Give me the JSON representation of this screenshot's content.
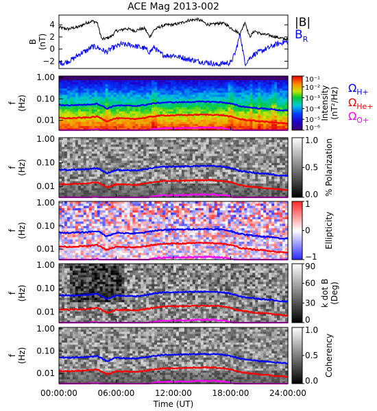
{
  "chart_data": [
    {
      "type": "line",
      "title": "ACE Mag 2013-002",
      "ylabel": "B",
      "yunit": "(nT)",
      "ylim": [
        -3.2,
        5.6
      ],
      "yticks": [
        "4",
        "2",
        "0",
        "−2"
      ],
      "ytick_values": [
        4,
        2,
        0,
        -2
      ],
      "x_hours": [
        0,
        0.5,
        1,
        1.5,
        2,
        2.5,
        3,
        3.5,
        4,
        4.5,
        5,
        5.5,
        6,
        6.5,
        7,
        7.5,
        8,
        8.5,
        9,
        9.5,
        10,
        10.5,
        11,
        11.5,
        12,
        12.5,
        13,
        13.5,
        14,
        14.5,
        15,
        15.5,
        16,
        16.5,
        17,
        17.5,
        18,
        18.5,
        19,
        19.5,
        20,
        20.5,
        21,
        21.5,
        22,
        22.5,
        23,
        23.5,
        24
      ],
      "series": [
        {
          "name": "|B|",
          "color": "#000000",
          "values": [
            3.6,
            3.4,
            3.3,
            3.5,
            3.6,
            4.0,
            4.4,
            4.6,
            4.4,
            1.6,
            1.8,
            2.1,
            3.0,
            3.1,
            3.4,
            3.2,
            3.0,
            3.3,
            3.4,
            2.0,
            3.2,
            3.6,
            3.9,
            4.0,
            4.0,
            4.2,
            4.4,
            4.7,
            4.8,
            4.9,
            4.6,
            4.1,
            4.0,
            4.2,
            4.3,
            4.1,
            3.5,
            3.0,
            2.5,
            4.5,
            2.0,
            3.0,
            2.6,
            2.4,
            2.3,
            2.1,
            1.9,
            1.7,
            1.6
          ]
        },
        {
          "name": "B",
          "name_sub": "R",
          "color": "#0000ff",
          "values": [
            -2.2,
            -2.3,
            -2.0,
            -1.6,
            -1.0,
            -0.5,
            -0.2,
            0.4,
            0.3,
            -0.1,
            -0.5,
            0.1,
            0.4,
            0.8,
            0.7,
            0.7,
            0.5,
            0.3,
            0.1,
            -0.5,
            0.3,
            -0.6,
            -1.0,
            -1.1,
            -1.0,
            -1.3,
            -1.4,
            -1.7,
            -1.8,
            -2.0,
            -2.1,
            -2.2,
            -2.3,
            -2.6,
            -2.4,
            -2.3,
            -2.3,
            -0.5,
            2.5,
            -2.4,
            -1.5,
            -0.8,
            -0.5,
            -0.1,
            0.2,
            0.6,
            0.9,
            1.1,
            1.2
          ]
        }
      ]
    },
    {
      "type": "heatmap",
      "ylabel": "f",
      "yunit": "(Hz)",
      "yscale": "log",
      "ylim": [
        0.0035,
        1.15
      ],
      "yticks": [
        "1.00",
        "0.10",
        "0.01"
      ],
      "ytick_values": [
        1,
        0.1,
        0.01
      ],
      "colorbar": {
        "label": "Intensity",
        "unit": "(nT²/Hz)",
        "scale": "log",
        "range": [
          1e-06,
          0.1
        ],
        "ticks": [
          "10⁻¹",
          "10⁻²",
          "10⁻³",
          "10⁻⁴",
          "10⁻⁵",
          "10⁻⁶"
        ],
        "tick_values": [
          0.1,
          0.01,
          0.001,
          0.0001,
          1e-05,
          1e-06
        ],
        "colormap": "rainbow"
      }
    },
    {
      "type": "heatmap",
      "ylabel": "f",
      "yunit": "(Hz)",
      "yscale": "log",
      "ylim": [
        0.0035,
        1.15
      ],
      "yticks": [
        "1.00",
        "0.10",
        "0.01"
      ],
      "ytick_values": [
        1,
        0.1,
        0.01
      ],
      "colorbar": {
        "label": "% Polarization",
        "range": [
          0,
          1
        ],
        "ticks": [
          "1.0",
          "0.5",
          "0.0"
        ],
        "tick_values": [
          1,
          0.5,
          0
        ],
        "colormap": "grayscale"
      }
    },
    {
      "type": "heatmap",
      "ylabel": "f",
      "yunit": "(Hz)",
      "yscale": "log",
      "ylim": [
        0.0035,
        1.15
      ],
      "yticks": [
        "1.00",
        "0.10",
        "0.01"
      ],
      "ytick_values": [
        1,
        0.1,
        0.01
      ],
      "colorbar": {
        "label": "Ellipticity",
        "range": [
          -1,
          1
        ],
        "ticks": [
          "1",
          "0",
          "−1"
        ],
        "tick_values": [
          1,
          0,
          -1
        ],
        "colormap": "blue-white-red"
      }
    },
    {
      "type": "heatmap",
      "ylabel": "f",
      "yunit": "(Hz)",
      "yscale": "log",
      "ylim": [
        0.0035,
        1.15
      ],
      "yticks": [
        "1.00",
        "0.10",
        "0.01"
      ],
      "ytick_values": [
        1,
        0.1,
        0.01
      ],
      "colorbar": {
        "label": "k dot B",
        "unit": "(Deg)",
        "range": [
          0,
          90
        ],
        "ticks": [
          "90",
          "60",
          "30",
          "0"
        ],
        "tick_values": [
          90,
          60,
          30,
          0
        ],
        "colormap": "grayscale"
      }
    },
    {
      "type": "heatmap",
      "ylabel": "f",
      "yunit": "(Hz)",
      "yscale": "log",
      "ylim": [
        0.0035,
        1.15
      ],
      "yticks": [
        "1.00",
        "0.10",
        "0.01"
      ],
      "ytick_values": [
        1,
        0.1,
        0.01
      ],
      "xticks": [
        "00:00:00",
        "06:00:00",
        "12:00:00",
        "18:00:00",
        "24:00:00"
      ],
      "xtick_hours": [
        0,
        6,
        12,
        18,
        24
      ],
      "xlabel": "Time (UT)",
      "colorbar": {
        "label": "Coherency",
        "range": [
          0,
          1
        ],
        "ticks": [
          "1.0",
          "0.5",
          "0.0"
        ],
        "tick_values": [
          1,
          0.5,
          0
        ],
        "colormap": "grayscale"
      }
    }
  ],
  "gyrofrequency_lines": {
    "x_hours": [
      0,
      1,
      2,
      3,
      4,
      5,
      6,
      7,
      8,
      9,
      10,
      11,
      12,
      13,
      14,
      15,
      16,
      17,
      18,
      19,
      20,
      21,
      22,
      23,
      24
    ],
    "lines": [
      {
        "name": "Ω",
        "name_sub": "H+",
        "color": "#0000ff",
        "values": [
          0.052,
          0.05,
          0.052,
          0.054,
          0.06,
          0.035,
          0.05,
          0.048,
          0.047,
          0.052,
          0.062,
          0.068,
          0.069,
          0.07,
          0.072,
          0.074,
          0.073,
          0.07,
          0.06,
          0.045,
          0.04,
          0.036,
          0.034,
          0.03,
          0.028
        ]
      },
      {
        "name": "Ω",
        "name_sub": "He+",
        "color": "#ff0000",
        "values": [
          0.013,
          0.0125,
          0.013,
          0.0135,
          0.015,
          0.009,
          0.0125,
          0.012,
          0.0118,
          0.013,
          0.0155,
          0.017,
          0.0172,
          0.0175,
          0.018,
          0.0185,
          0.0183,
          0.0175,
          0.015,
          0.0112,
          0.01,
          0.009,
          0.0085,
          0.0075,
          0.007
        ]
      },
      {
        "name": "Ω",
        "name_sub": "O+",
        "color": "#ff00ff",
        "values": [
          0.0033,
          0.0031,
          0.0033,
          0.0034,
          0.0038,
          0.0023,
          0.0031,
          0.003,
          0.003,
          0.0033,
          0.0039,
          0.0043,
          0.0043,
          0.0044,
          0.0045,
          0.0046,
          0.0046,
          0.0044,
          0.0038,
          0.0028,
          0.0025,
          0.0023,
          0.0021,
          0.0019,
          0.0018
        ]
      }
    ]
  }
}
